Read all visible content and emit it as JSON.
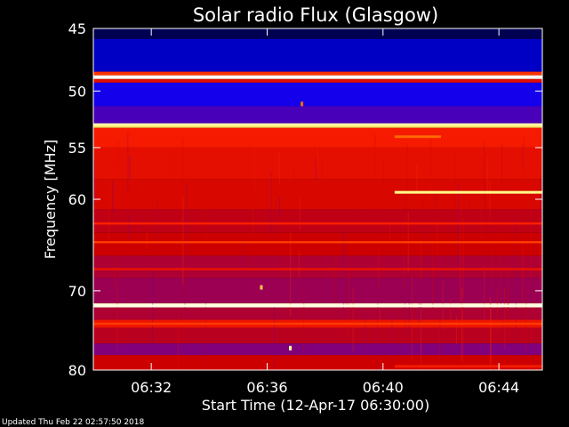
{
  "chart_data": {
    "type": "heatmap",
    "title": "Solar radio Flux (Glasgow)",
    "ylabel": "Frequency [MHz]",
    "xlabel": "Start Time (12-Apr-17 06:30:00)",
    "x_ticks": [
      "06:32",
      "06:36",
      "06:40",
      "06:44"
    ],
    "x_tick_minutes": [
      2,
      6,
      10,
      14
    ],
    "xlim_minutes": [
      0,
      15.5
    ],
    "y_ticks": [
      "45",
      "50",
      "55",
      "60",
      "70",
      "80"
    ],
    "y_tick_values": [
      45,
      50,
      55,
      60,
      70,
      80
    ],
    "ylim": [
      45,
      80
    ],
    "y_scale": "log",
    "colormap": [
      "#000000",
      "#0000cc",
      "#0000ff",
      "#800080",
      "#cc0000",
      "#ff2000",
      "#ff8000",
      "#ffff80",
      "#ffffff"
    ],
    "bands": [
      {
        "from": 45.0,
        "to": 45.8,
        "level": 0.05
      },
      {
        "from": 45.8,
        "to": 48.4,
        "level": 0.12
      },
      {
        "from": 48.4,
        "to": 48.7,
        "level": 0.65
      },
      {
        "from": 48.7,
        "to": 49.0,
        "level": 1.0
      },
      {
        "from": 49.0,
        "to": 49.3,
        "level": 0.55
      },
      {
        "from": 49.3,
        "to": 51.3,
        "level": 0.27
      },
      {
        "from": 51.3,
        "to": 52.8,
        "level": 0.32
      },
      {
        "from": 52.8,
        "to": 53.2,
        "level": 0.85
      },
      {
        "from": 53.2,
        "to": 55.0,
        "level": 0.6
      },
      {
        "from": 55.0,
        "to": 58.0,
        "level": 0.56
      },
      {
        "from": 58.0,
        "to": 61.0,
        "level": 0.53
      },
      {
        "from": 61.0,
        "to": 63.5,
        "level": 0.48
      },
      {
        "from": 63.5,
        "to": 66.0,
        "level": 0.5
      },
      {
        "from": 66.0,
        "to": 68.5,
        "level": 0.45
      },
      {
        "from": 68.5,
        "to": 71.5,
        "level": 0.42
      },
      {
        "from": 71.5,
        "to": 72.0,
        "level": 0.95
      },
      {
        "from": 72.0,
        "to": 73.5,
        "level": 0.45
      },
      {
        "from": 73.5,
        "to": 74.5,
        "level": 0.58
      },
      {
        "from": 74.5,
        "to": 76.5,
        "level": 0.47
      },
      {
        "from": 76.5,
        "to": 78.0,
        "level": 0.38
      },
      {
        "from": 78.0,
        "to": 80.0,
        "level": 0.5
      }
    ],
    "lines": [
      {
        "freq": 48.8,
        "level": 1.0
      },
      {
        "freq": 52.9,
        "level": 0.92
      },
      {
        "freq": 62.5,
        "level": 0.62
      },
      {
        "freq": 64.5,
        "level": 0.66
      },
      {
        "freq": 67.5,
        "level": 0.58
      },
      {
        "freq": 71.8,
        "level": 0.98
      },
      {
        "freq": 74.0,
        "level": 0.66
      }
    ],
    "segments": [
      {
        "freq": 59.3,
        "t_start": 10.4,
        "t_end": 15.5,
        "level": 0.88
      },
      {
        "freq": 54.0,
        "t_start": 10.4,
        "t_end": 12.0,
        "level": 0.72
      },
      {
        "freq": 79.5,
        "t_start": 10.4,
        "t_end": 15.5,
        "level": 0.6
      }
    ],
    "spots": [
      {
        "t": 7.2,
        "freq": 51.1,
        "level": 0.72
      },
      {
        "t": 5.8,
        "freq": 69.6,
        "level": 0.82
      },
      {
        "t": 6.8,
        "freq": 77.1,
        "level": 0.9
      }
    ]
  },
  "footer": {
    "updated": "Updated Thu Feb 22 02:57:50 2018"
  }
}
